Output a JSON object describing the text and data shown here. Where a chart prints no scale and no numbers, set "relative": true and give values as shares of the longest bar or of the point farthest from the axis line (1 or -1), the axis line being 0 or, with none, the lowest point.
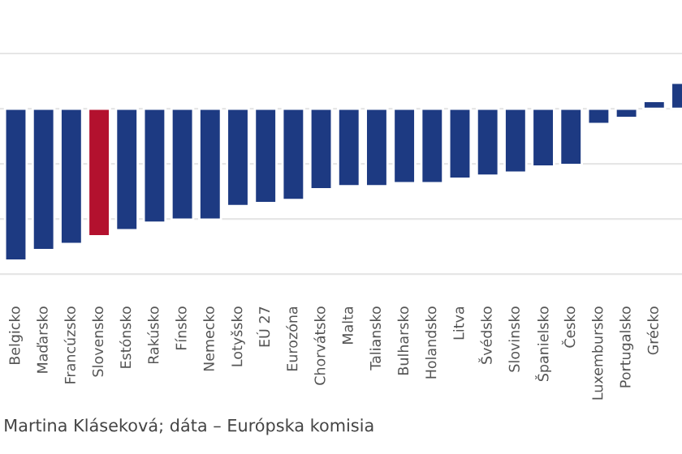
{
  "chart_data": {
    "type": "bar",
    "relative": true,
    "grid": "y",
    "categories": [
      "Belgicko",
      "Maďarsko",
      "Francúzsko",
      "Slovensko",
      "Estónsko",
      "Rakúsko",
      "Fínsko",
      "Nemecko",
      "Lotyšsko",
      "EÚ 27",
      "Eurozóna",
      "Chorvátsko",
      "Malta",
      "Taliansko",
      "Bulharsko",
      "Holandsko",
      "Litva",
      "Švédsko",
      "Slovinsko",
      "Španielsko",
      "Česko",
      "Luxembursko",
      "Portugalsko",
      "Grécko",
      null
    ],
    "values": [
      -1,
      -0.93,
      -0.89,
      -0.84,
      -0.8,
      -0.75,
      -0.73,
      -0.73,
      -0.64,
      -0.62,
      -0.6,
      -0.53,
      -0.51,
      -0.51,
      -0.49,
      -0.49,
      -0.46,
      -0.44,
      -0.42,
      -0.38,
      -0.37,
      -0.1,
      -0.06,
      0.05,
      0.17
    ],
    "colors": [
      "#1d3a82",
      "#1d3a82",
      "#1d3a82",
      "#b3112e",
      "#1d3a82",
      "#1d3a82",
      "#1d3a82",
      "#1d3a82",
      "#1d3a82",
      "#1d3a82",
      "#1d3a82",
      "#1d3a82",
      "#1d3a82",
      "#1d3a82",
      "#1d3a82",
      "#1d3a82",
      "#1d3a82",
      "#1d3a82",
      "#1d3a82",
      "#1d3a82",
      "#1d3a82",
      "#1d3a82",
      "#1d3a82",
      "#1d3a82",
      "#1d3a82"
    ],
    "annotations": [
      "Martina Kláseková; dáta – Európska komisia"
    ]
  }
}
